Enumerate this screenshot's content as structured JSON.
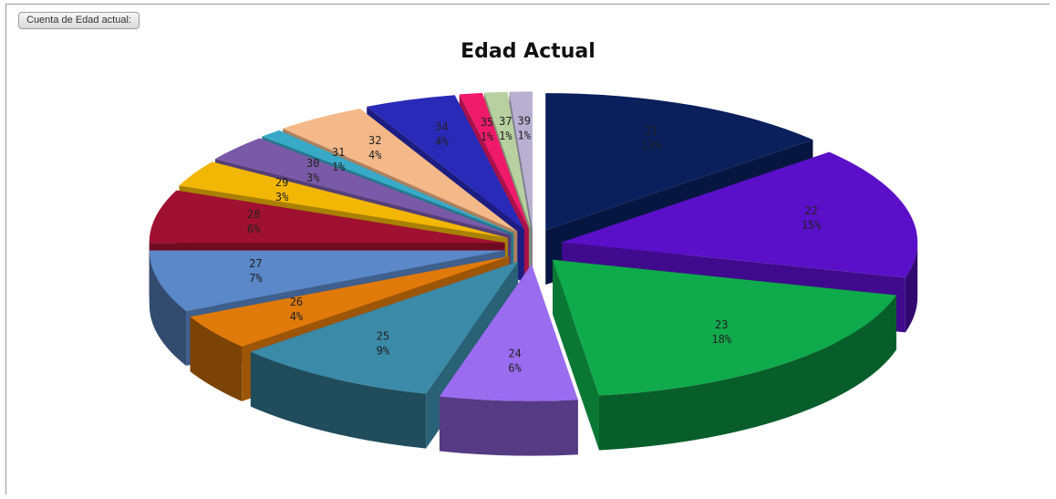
{
  "field_button": {
    "label": "Cuenta de Edad actual:"
  },
  "chart_data": {
    "type": "pie",
    "title": "Edad Actual",
    "style": "3d-exploded",
    "slices": [
      {
        "label": "21",
        "value": 13,
        "pct": "13%",
        "color": "#0a1f5c"
      },
      {
        "label": "22",
        "value": 15,
        "pct": "15%",
        "color": "#5a10c8"
      },
      {
        "label": "23",
        "value": 18,
        "pct": "18%",
        "color": "#0faa4c"
      },
      {
        "label": "24",
        "value": 6,
        "pct": "6%",
        "color": "#9a6cf0"
      },
      {
        "label": "25",
        "value": 9,
        "pct": "9%",
        "color": "#3a8aa8"
      },
      {
        "label": "26",
        "value": 4,
        "pct": "4%",
        "color": "#e07a0a"
      },
      {
        "label": "27",
        "value": 7,
        "pct": "7%",
        "color": "#5a88c8"
      },
      {
        "label": "28",
        "value": 6,
        "pct": "6%",
        "color": "#a01030"
      },
      {
        "label": "29",
        "value": 3,
        "pct": "3%",
        "color": "#f2b705"
      },
      {
        "label": "30",
        "value": 3,
        "pct": "3%",
        "color": "#7a5aa8"
      },
      {
        "label": "31",
        "value": 1,
        "pct": "1%",
        "color": "#38aac8"
      },
      {
        "label": "32",
        "value": 4,
        "pct": "4%",
        "color": "#f5b888"
      },
      {
        "label": "34",
        "value": 4,
        "pct": "4%",
        "color": "#2a2ab8"
      },
      {
        "label": "35",
        "value": 1,
        "pct": "1%",
        "color": "#f01a6a"
      },
      {
        "label": "37",
        "value": 1,
        "pct": "1%",
        "color": "#b8d0a0"
      },
      {
        "label": "39",
        "value": 1,
        "pct": "1%",
        "color": "#b8b0d0"
      }
    ]
  }
}
